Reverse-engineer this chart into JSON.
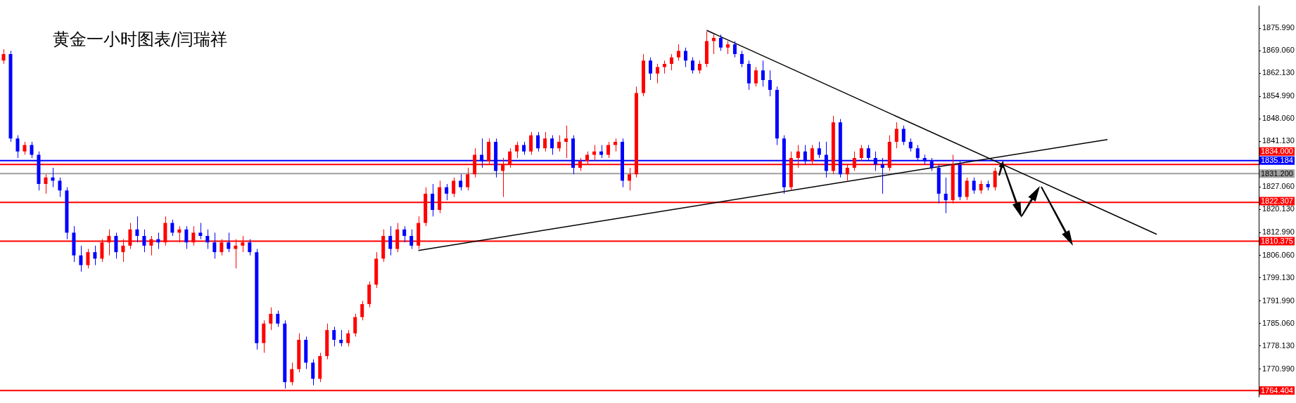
{
  "chart_data": {
    "type": "candlestick",
    "title": "黄金一小时图表/闫瑞祥",
    "categories": [
      null,
      null,
      null,
      null,
      null,
      null,
      null,
      null,
      null,
      null,
      null,
      null,
      null,
      null,
      null,
      null,
      null,
      null,
      null,
      null,
      null,
      null,
      null,
      null,
      null,
      null,
      null,
      null,
      null,
      null,
      null,
      null,
      null,
      null,
      null,
      null,
      null,
      null,
      null,
      null,
      null,
      null,
      null,
      null,
      null,
      null,
      null,
      null,
      null,
      null,
      null,
      null,
      null,
      null,
      null,
      null,
      null,
      null,
      null,
      null,
      null,
      null,
      null,
      null,
      null,
      null,
      null,
      null,
      null,
      null,
      null,
      null,
      null,
      null,
      null,
      null,
      null,
      null,
      null,
      null,
      null,
      null,
      null,
      null,
      null,
      null,
      null,
      null,
      null,
      null,
      null,
      null,
      null,
      null,
      null,
      null,
      null,
      null,
      null,
      null,
      null,
      null,
      null,
      null,
      null,
      null,
      null,
      null,
      null,
      null,
      null,
      null,
      null,
      null,
      null,
      null,
      null,
      null,
      null,
      null,
      null,
      null,
      null,
      null,
      null,
      null,
      null,
      null,
      null,
      null,
      null,
      null,
      null,
      null,
      null,
      null,
      null,
      null,
      null,
      null,
      null,
      null,
      null,
      null,
      null,
      null,
      null,
      null,
      null,
      null,
      null,
      null,
      null,
      null,
      null,
      null,
      null,
      null,
      null,
      null,
      null,
      null,
      null,
      null,
      null,
      null,
      null,
      null,
      null,
      null,
      null,
      null,
      null,
      null,
      null,
      null,
      null,
      null,
      null
    ],
    "ohlc": [
      [
        1866,
        1869.5,
        1865,
        1868
      ],
      [
        1868,
        1869,
        1841,
        1842
      ],
      [
        1842,
        1843,
        1836,
        1838
      ],
      [
        1838,
        1841,
        1837,
        1840
      ],
      [
        1840,
        1841,
        1836,
        1837
      ],
      [
        1837,
        1838,
        1826,
        1828
      ],
      [
        1828,
        1831,
        1825,
        1830
      ],
      [
        1830,
        1833,
        1827,
        1829
      ],
      [
        1829,
        1830,
        1824,
        1826
      ],
      [
        1826,
        1827,
        1811,
        1813
      ],
      [
        1813,
        1815,
        1804,
        1806
      ],
      [
        1806,
        1809,
        1801,
        1803
      ],
      [
        1803,
        1808,
        1802,
        1807
      ],
      [
        1807,
        1809,
        1803,
        1805
      ],
      [
        1805,
        1811,
        1804,
        1810
      ],
      [
        1810,
        1814,
        1806,
        1812
      ],
      [
        1812,
        1813,
        1805,
        1807
      ],
      [
        1807,
        1811,
        1804,
        1809
      ],
      [
        1809,
        1816,
        1808,
        1814
      ],
      [
        1814,
        1818,
        1810,
        1812
      ],
      [
        1812,
        1814,
        1807,
        1809
      ],
      [
        1809,
        1812,
        1806,
        1811
      ],
      [
        1811,
        1813,
        1808,
        1810
      ],
      [
        1810,
        1818,
        1809,
        1816
      ],
      [
        1816,
        1817,
        1812,
        1813
      ],
      [
        1813,
        1815,
        1810,
        1814
      ],
      [
        1814,
        1815,
        1808,
        1810
      ],
      [
        1810,
        1815,
        1809,
        1813
      ],
      [
        1813,
        1816,
        1811,
        1812
      ],
      [
        1812,
        1814,
        1808,
        1810
      ],
      [
        1810,
        1813,
        1805,
        1807
      ],
      [
        1807,
        1811,
        1806,
        1810
      ],
      [
        1810,
        1813,
        1807,
        1808
      ],
      [
        1808,
        1811,
        1802,
        1809
      ],
      [
        1809,
        1812,
        1807,
        1810
      ],
      [
        1810,
        1811,
        1806,
        1807
      ],
      [
        1807,
        1808,
        1777,
        1779
      ],
      [
        1779,
        1786,
        1776,
        1785
      ],
      [
        1785,
        1790,
        1783,
        1788
      ],
      [
        1788,
        1789,
        1784,
        1785
      ],
      [
        1785,
        1786,
        1765,
        1767
      ],
      [
        1767,
        1773,
        1766,
        1771
      ],
      [
        1771,
        1782,
        1770,
        1780
      ],
      [
        1780,
        1781,
        1771,
        1773
      ],
      [
        1773,
        1774,
        1766,
        1768
      ],
      [
        1768,
        1776,
        1767,
        1775
      ],
      [
        1775,
        1785,
        1774,
        1783
      ],
      [
        1783,
        1784,
        1778,
        1780
      ],
      [
        1780,
        1783,
        1778,
        1779
      ],
      [
        1779,
        1783,
        1778,
        1782
      ],
      [
        1782,
        1788,
        1781,
        1787
      ],
      [
        1787,
        1792,
        1786,
        1791
      ],
      [
        1791,
        1798,
        1790,
        1797
      ],
      [
        1797,
        1807,
        1796,
        1805
      ],
      [
        1805,
        1814,
        1804,
        1812
      ],
      [
        1812,
        1815,
        1806,
        1808
      ],
      [
        1808,
        1816,
        1807,
        1814
      ],
      [
        1814,
        1815,
        1810,
        1812
      ],
      [
        1812,
        1814,
        1808,
        1809
      ],
      [
        1809,
        1818,
        1808,
        1816
      ],
      [
        1816,
        1827,
        1815,
        1825
      ],
      [
        1825,
        1828,
        1818,
        1820
      ],
      [
        1820,
        1829,
        1819,
        1827
      ],
      [
        1827,
        1828,
        1823,
        1825
      ],
      [
        1825,
        1830,
        1824,
        1829
      ],
      [
        1829,
        1831,
        1826,
        1827
      ],
      [
        1827,
        1833,
        1826,
        1831
      ],
      [
        1831,
        1839,
        1830,
        1837
      ],
      [
        1837,
        1842,
        1833,
        1835
      ],
      [
        1835,
        1842,
        1834,
        1841
      ],
      [
        1841,
        1842,
        1830,
        1832
      ],
      [
        1832,
        1836,
        1824,
        1834
      ],
      [
        1834,
        1839,
        1833,
        1838
      ],
      [
        1838,
        1841,
        1836,
        1840
      ],
      [
        1840,
        1841,
        1837,
        1838
      ],
      [
        1838,
        1844,
        1837,
        1843
      ],
      [
        1843,
        1844,
        1838,
        1839
      ],
      [
        1839,
        1844,
        1838,
        1842
      ],
      [
        1842,
        1843,
        1837,
        1839
      ],
      [
        1839,
        1843,
        1838,
        1841
      ],
      [
        1841,
        1846,
        1836,
        1842
      ],
      [
        1842,
        1843,
        1831,
        1833
      ],
      [
        1833,
        1836,
        1832,
        1835
      ],
      [
        1835,
        1838,
        1834,
        1837
      ],
      [
        1837,
        1840,
        1835,
        1838
      ],
      [
        1838,
        1840,
        1836,
        1837
      ],
      [
        1837,
        1841,
        1836,
        1840
      ],
      [
        1840,
        1842,
        1838,
        1841
      ],
      [
        1841,
        1842,
        1827,
        1829
      ],
      [
        1829,
        1833,
        1826,
        1831
      ],
      [
        1831,
        1858,
        1830,
        1856
      ],
      [
        1856,
        1868,
        1855,
        1866
      ],
      [
        1866,
        1867,
        1860,
        1862
      ],
      [
        1862,
        1865,
        1859,
        1864
      ],
      [
        1864,
        1866,
        1862,
        1865
      ],
      [
        1865,
        1868,
        1863,
        1867
      ],
      [
        1867,
        1871,
        1866,
        1869
      ],
      [
        1869,
        1870,
        1864,
        1866
      ],
      [
        1866,
        1867,
        1862,
        1863
      ],
      [
        1863,
        1866,
        1862,
        1865
      ],
      [
        1865,
        1875,
        1864,
        1872
      ],
      [
        1872,
        1874,
        1868,
        1873
      ],
      [
        1873,
        1874,
        1869,
        1870
      ],
      [
        1870,
        1872,
        1868,
        1871
      ],
      [
        1871,
        1872,
        1867,
        1868
      ],
      [
        1868,
        1869,
        1864,
        1865
      ],
      [
        1865,
        1866,
        1857,
        1859
      ],
      [
        1859,
        1864,
        1858,
        1863
      ],
      [
        1863,
        1866,
        1858,
        1860
      ],
      [
        1860,
        1863,
        1855,
        1857
      ],
      [
        1857,
        1858,
        1840,
        1842
      ],
      [
        1842,
        1843,
        1825,
        1827
      ],
      [
        1827,
        1838,
        1826,
        1836
      ],
      [
        1836,
        1840,
        1833,
        1838
      ],
      [
        1838,
        1840,
        1834,
        1835
      ],
      [
        1835,
        1840,
        1834,
        1839
      ],
      [
        1839,
        1841,
        1836,
        1837
      ],
      [
        1837,
        1841,
        1830,
        1832
      ],
      [
        1832,
        1849,
        1831,
        1847
      ],
      [
        1847,
        1848,
        1830,
        1831
      ],
      [
        1831,
        1834,
        1829,
        1833
      ],
      [
        1833,
        1838,
        1832,
        1836
      ],
      [
        1836,
        1840,
        1835,
        1839
      ],
      [
        1839,
        1840,
        1835,
        1836
      ],
      [
        1836,
        1838,
        1832,
        1834
      ],
      [
        1834,
        1836,
        1825,
        1833
      ],
      [
        1833,
        1843,
        1832,
        1841
      ],
      [
        1841,
        1847,
        1839,
        1845
      ],
      [
        1845,
        1846,
        1840,
        1841
      ],
      [
        1841,
        1842,
        1838,
        1839
      ],
      [
        1839,
        1840,
        1835,
        1836
      ],
      [
        1836,
        1837,
        1834,
        1835
      ],
      [
        1835,
        1836,
        1832,
        1833
      ],
      [
        1833,
        1834,
        1822,
        1825
      ],
      [
        1825,
        1830,
        1819,
        1823
      ],
      [
        1823,
        1837,
        1822,
        1834
      ],
      [
        1834,
        1835,
        1823,
        1824
      ],
      [
        1824,
        1830,
        1823,
        1829
      ],
      [
        1829,
        1830,
        1825,
        1826
      ],
      [
        1826,
        1829,
        1825,
        1828
      ],
      [
        1828,
        1829,
        1826,
        1827
      ],
      [
        1827,
        1833,
        1826,
        1832
      ],
      null,
      null,
      null,
      null,
      null,
      null,
      null,
      null,
      null,
      null,
      null,
      null,
      null,
      null,
      null,
      null,
      null,
      null,
      null,
      null,
      null,
      null,
      null,
      null,
      null,
      null,
      null,
      null,
      null,
      null,
      null,
      null,
      null,
      null,
      null,
      null,
      null
    ],
    "colors": [
      "#ff0000",
      "#0000ff",
      "#0000ff",
      "#ff0000",
      "#0000ff",
      "#0000ff",
      "#ff0000",
      "#0000ff",
      "#0000ff",
      "#0000ff",
      "#0000ff",
      "#0000ff",
      "#ff0000",
      "#0000ff",
      "#ff0000",
      "#ff0000",
      "#0000ff",
      "#ff0000",
      "#ff0000",
      "#0000ff",
      "#0000ff",
      "#ff0000",
      "#0000ff",
      "#ff0000",
      "#0000ff",
      "#ff0000",
      "#0000ff",
      "#ff0000",
      "#0000ff",
      "#0000ff",
      "#0000ff",
      "#ff0000",
      "#0000ff",
      "#ff0000",
      "#ff0000",
      "#0000ff",
      "#0000ff",
      "#ff0000",
      "#ff0000",
      "#0000ff",
      "#0000ff",
      "#ff0000",
      "#ff0000",
      "#0000ff",
      "#0000ff",
      "#ff0000",
      "#ff0000",
      "#0000ff",
      "#0000ff",
      "#ff0000",
      "#ff0000",
      "#ff0000",
      "#ff0000",
      "#ff0000",
      "#ff0000",
      "#0000ff",
      "#ff0000",
      "#0000ff",
      "#0000ff",
      "#ff0000",
      "#ff0000",
      "#0000ff",
      "#ff0000",
      "#0000ff",
      "#ff0000",
      "#0000ff",
      "#ff0000",
      "#ff0000",
      "#0000ff",
      "#ff0000",
      "#0000ff",
      "#ff0000",
      "#ff0000",
      "#ff0000",
      "#0000ff",
      "#ff0000",
      "#0000ff",
      "#ff0000",
      "#0000ff",
      "#ff0000",
      "#ff0000",
      "#0000ff",
      "#ff0000",
      "#ff0000",
      "#ff0000",
      "#0000ff",
      "#ff0000",
      "#ff0000",
      "#0000ff",
      "#ff0000",
      "#ff0000",
      "#ff0000",
      "#0000ff",
      "#ff0000",
      "#ff0000",
      "#ff0000",
      "#ff0000",
      "#0000ff",
      "#0000ff",
      "#ff0000",
      "#ff0000",
      "#ff0000",
      "#0000ff",
      "#ff0000",
      "#0000ff",
      "#0000ff",
      "#0000ff",
      "#ff0000",
      "#0000ff",
      "#0000ff",
      "#0000ff",
      "#0000ff",
      "#ff0000",
      "#ff0000",
      "#0000ff",
      "#ff0000",
      "#0000ff",
      "#0000ff",
      "#ff0000",
      "#0000ff",
      "#ff0000",
      "#ff0000",
      "#ff0000",
      "#0000ff",
      "#0000ff",
      "#0000ff",
      "#ff0000",
      "#ff0000",
      "#0000ff",
      "#0000ff",
      "#0000ff",
      "#0000ff",
      "#0000ff",
      "#0000ff",
      "#0000ff",
      "#ff0000",
      "#0000ff",
      "#ff0000",
      "#0000ff",
      "#ff0000",
      "#0000ff",
      "#ff0000",
      null,
      null,
      null,
      null,
      null,
      null,
      null,
      null,
      null,
      null,
      null,
      null,
      null,
      null,
      null,
      null,
      null,
      null,
      null,
      null,
      null,
      null,
      null,
      null,
      null,
      null,
      null,
      null,
      null,
      null,
      null,
      null,
      null,
      null,
      null,
      null,
      null
    ],
    "series": [
      {
        "type": "line",
        "color": "#000000",
        "values": [
          null,
          null,
          null,
          null,
          null,
          null,
          null,
          null,
          null,
          null,
          null,
          null,
          null,
          null,
          null,
          null,
          null,
          null,
          null,
          null,
          null,
          null,
          null,
          null,
          null,
          null,
          null,
          null,
          null,
          null,
          null,
          null,
          null,
          null,
          null,
          null,
          null,
          null,
          null,
          null,
          null,
          null,
          null,
          null,
          null,
          null,
          null,
          null,
          null,
          null,
          null,
          null,
          null,
          null,
          null,
          null,
          null,
          null,
          null,
          null,
          null,
          null,
          null,
          null,
          null,
          null,
          null,
          null,
          null,
          null,
          null,
          null,
          null,
          null,
          null,
          null,
          null,
          null,
          null,
          null,
          null,
          null,
          null,
          null,
          null,
          null,
          null,
          null,
          null,
          null,
          null,
          null,
          null,
          null,
          null,
          null,
          null,
          null,
          null,
          null,
          1875.3,
          null,
          null,
          null,
          null,
          null,
          null,
          null,
          null,
          null,
          null,
          null,
          null,
          null,
          null,
          null,
          null,
          null,
          null,
          null,
          null,
          null,
          null,
          null,
          null,
          null,
          null,
          null,
          null,
          null,
          null,
          null,
          null,
          null,
          null,
          null,
          null,
          null,
          null,
          null,
          null,
          null,
          null,
          null,
          null,
          null,
          null,
          null,
          null,
          null,
          null,
          null,
          null,
          null,
          null,
          null,
          null,
          null,
          null,
          null,
          null,
          null,
          null,
          null,
          1812.5,
          null,
          null,
          null,
          null,
          null,
          null,
          null,
          null,
          null,
          null,
          null,
          null,
          null,
          null
        ]
      },
      {
        "type": "line",
        "color": "#000000",
        "values": [
          null,
          null,
          null,
          null,
          null,
          null,
          null,
          null,
          null,
          null,
          null,
          null,
          null,
          null,
          null,
          null,
          null,
          null,
          null,
          null,
          null,
          null,
          null,
          null,
          null,
          null,
          null,
          null,
          null,
          null,
          null,
          null,
          null,
          null,
          null,
          null,
          null,
          null,
          null,
          null,
          null,
          null,
          null,
          null,
          null,
          null,
          null,
          null,
          null,
          null,
          null,
          null,
          null,
          null,
          null,
          null,
          null,
          null,
          null,
          1807.5,
          null,
          null,
          null,
          null,
          null,
          null,
          null,
          null,
          null,
          null,
          null,
          null,
          null,
          null,
          null,
          null,
          null,
          null,
          null,
          null,
          null,
          null,
          null,
          null,
          null,
          null,
          null,
          null,
          null,
          null,
          null,
          null,
          null,
          null,
          null,
          null,
          null,
          null,
          null,
          null,
          null,
          null,
          null,
          null,
          null,
          null,
          null,
          null,
          null,
          null,
          null,
          null,
          null,
          null,
          null,
          null,
          null,
          null,
          null,
          null,
          null,
          null,
          null,
          null,
          null,
          null,
          null,
          null,
          null,
          null,
          null,
          null,
          null,
          null,
          null,
          null,
          null,
          null,
          null,
          null,
          null,
          null,
          null,
          null,
          null,
          null,
          null,
          null,
          null,
          null,
          null,
          null,
          null,
          null,
          null,
          null,
          null,
          1841.7,
          null,
          null,
          null,
          null,
          null,
          null,
          null,
          null,
          null,
          null,
          null,
          null,
          null,
          null,
          null,
          null,
          null,
          null,
          null,
          null,
          null
        ]
      }
    ],
    "ylim": [
      1762.4,
      1882.8
    ],
    "yticks": [
      {
        "value": 1875.99,
        "label": "1875.990"
      },
      {
        "value": 1869.06,
        "label": "1869.060"
      },
      {
        "value": 1862.13,
        "label": "1862.130"
      },
      {
        "value": 1854.99,
        "label": "1854.990"
      },
      {
        "value": 1848.06,
        "label": "1848.060"
      },
      {
        "value": 1841.13,
        "label": "1841.130"
      },
      {
        "value": 1827.06,
        "label": "1827.060"
      },
      {
        "value": 1820.13,
        "label": "1820.130"
      },
      {
        "value": 1812.99,
        "label": "1812.990"
      },
      {
        "value": 1806.06,
        "label": "1806.060"
      },
      {
        "value": 1799.13,
        "label": "1799.130"
      },
      {
        "value": 1791.99,
        "label": "1791.990"
      },
      {
        "value": 1785.06,
        "label": "1785.060"
      },
      {
        "value": 1778.13,
        "label": "1778.130"
      },
      {
        "value": 1770.99,
        "label": "1770.990"
      }
    ],
    "ref_lines": [
      {
        "axis": "y",
        "value": 1835.184,
        "label": "1835.184",
        "color": "#0000ff"
      },
      {
        "axis": "y",
        "value": 1834.0,
        "label": "1834.000",
        "color": "#ff0000"
      },
      {
        "axis": "y",
        "value": 1831.2,
        "label": "1831.200",
        "color": "#a0a0a0"
      },
      {
        "axis": "y",
        "value": 1822.307,
        "label": "1822.307",
        "color": "#ff0000"
      },
      {
        "axis": "y",
        "value": 1810.375,
        "label": "1810.375",
        "color": "#ff0000"
      },
      {
        "axis": "y",
        "value": 1764.404,
        "label": "1764.404",
        "color": "#ff0000"
      }
    ],
    "legend": false
  }
}
